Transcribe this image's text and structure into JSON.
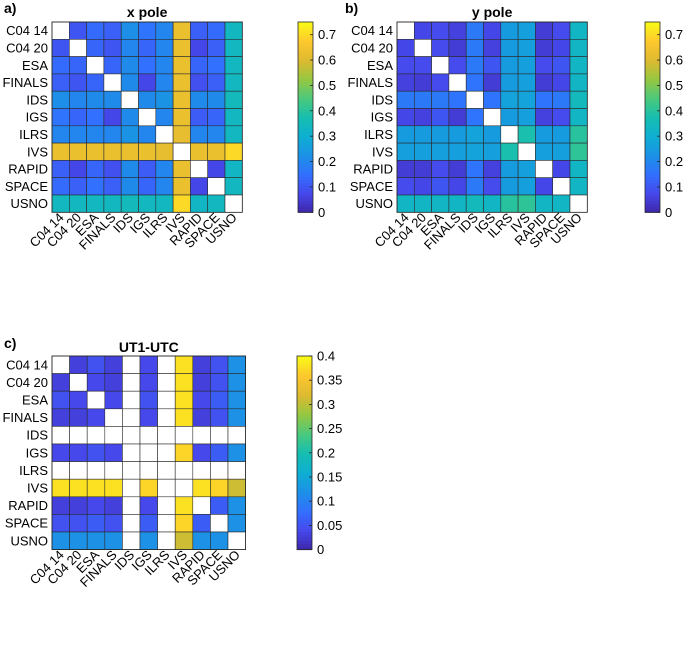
{
  "chart_data": [
    {
      "type": "heatmap",
      "panel_label": "a)",
      "title": "x pole",
      "categories": [
        "C04 14",
        "C04 20",
        "ESA",
        "FINALS",
        "IDS",
        "IGS",
        "ILRS",
        "IVS",
        "RAPID",
        "SPACE",
        "USNO"
      ],
      "colorbar": {
        "min": 0,
        "max": 0.75,
        "ticks": [
          0,
          0.1,
          0.2,
          0.3,
          0.4,
          0.5,
          0.6,
          0.7
        ]
      },
      "values": [
        [
          null,
          0.1,
          0.14,
          0.12,
          0.22,
          0.16,
          0.2,
          0.63,
          0.12,
          0.14,
          0.34
        ],
        [
          0.1,
          null,
          0.13,
          0.1,
          0.2,
          0.13,
          0.2,
          0.63,
          0.07,
          0.12,
          0.34
        ],
        [
          0.14,
          0.13,
          null,
          0.13,
          0.21,
          0.15,
          0.2,
          0.63,
          0.13,
          0.15,
          0.34
        ],
        [
          0.12,
          0.1,
          0.13,
          null,
          0.21,
          0.07,
          0.2,
          0.63,
          0.09,
          0.12,
          0.34
        ],
        [
          0.22,
          0.2,
          0.21,
          0.21,
          null,
          0.21,
          0.23,
          0.63,
          0.21,
          0.21,
          0.35
        ],
        [
          0.16,
          0.13,
          0.15,
          0.07,
          0.21,
          null,
          0.2,
          0.63,
          0.11,
          0.13,
          0.34
        ],
        [
          0.2,
          0.2,
          0.2,
          0.2,
          0.23,
          0.2,
          null,
          0.62,
          0.2,
          0.2,
          0.34
        ],
        [
          0.63,
          0.63,
          0.63,
          0.63,
          0.63,
          0.63,
          0.62,
          null,
          0.63,
          0.63,
          0.7
        ],
        [
          0.12,
          0.07,
          0.13,
          0.09,
          0.21,
          0.11,
          0.2,
          0.63,
          null,
          0.07,
          0.33
        ],
        [
          0.14,
          0.12,
          0.15,
          0.12,
          0.21,
          0.13,
          0.2,
          0.63,
          0.07,
          null,
          0.34
        ],
        [
          0.34,
          0.34,
          0.34,
          0.34,
          0.35,
          0.34,
          0.34,
          0.7,
          0.33,
          0.34,
          null
        ]
      ]
    },
    {
      "type": "heatmap",
      "panel_label": "b)",
      "title": "y pole",
      "categories": [
        "C04 14",
        "C04 20",
        "ESA",
        "FINALS",
        "IDS",
        "IGS",
        "ILRS",
        "IVS",
        "RAPID",
        "SPACE",
        "USNO"
      ],
      "colorbar": {
        "min": 0,
        "max": 0.75,
        "ticks": [
          0,
          0.1,
          0.2,
          0.3,
          0.4,
          0.5,
          0.6,
          0.7
        ]
      },
      "values": [
        [
          null,
          0.07,
          0.08,
          0.06,
          0.17,
          0.07,
          0.25,
          0.26,
          0.05,
          0.08,
          0.33
        ],
        [
          0.07,
          null,
          0.08,
          0.05,
          0.17,
          0.06,
          0.25,
          0.26,
          0.05,
          0.07,
          0.33
        ],
        [
          0.08,
          0.08,
          null,
          0.08,
          0.17,
          0.1,
          0.25,
          0.26,
          0.08,
          0.1,
          0.33
        ],
        [
          0.06,
          0.05,
          0.08,
          null,
          0.16,
          0.05,
          0.25,
          0.26,
          0.05,
          0.07,
          0.33
        ],
        [
          0.17,
          0.17,
          0.17,
          0.16,
          null,
          0.16,
          0.27,
          0.27,
          0.16,
          0.17,
          0.35
        ],
        [
          0.07,
          0.06,
          0.1,
          0.05,
          0.16,
          null,
          0.25,
          0.26,
          0.06,
          0.08,
          0.33
        ],
        [
          0.25,
          0.25,
          0.25,
          0.25,
          0.27,
          0.25,
          null,
          0.38,
          0.25,
          0.25,
          0.4
        ],
        [
          0.26,
          0.26,
          0.26,
          0.26,
          0.27,
          0.26,
          0.38,
          null,
          0.26,
          0.26,
          0.41
        ],
        [
          0.05,
          0.05,
          0.08,
          0.05,
          0.16,
          0.06,
          0.25,
          0.26,
          null,
          0.07,
          0.33
        ],
        [
          0.08,
          0.07,
          0.1,
          0.07,
          0.17,
          0.08,
          0.25,
          0.26,
          0.07,
          null,
          0.33
        ],
        [
          0.33,
          0.33,
          0.33,
          0.33,
          0.35,
          0.33,
          0.4,
          0.41,
          0.33,
          0.33,
          null
        ]
      ]
    },
    {
      "type": "heatmap",
      "panel_label": "c)",
      "title": "UT1-UTC",
      "categories": [
        "C04 14",
        "C04 20",
        "ESA",
        "FINALS",
        "IDS",
        "IGS",
        "ILRS",
        "IVS",
        "RAPID",
        "SPACE",
        "USNO"
      ],
      "colorbar": {
        "min": 0,
        "max": 0.4,
        "ticks": [
          0,
          0.05,
          0.1,
          0.15,
          0.2,
          0.25,
          0.3,
          0.35,
          0.4
        ]
      },
      "values": [
        [
          null,
          0.03,
          0.05,
          0.03,
          null,
          0.04,
          null,
          0.38,
          0.03,
          0.05,
          0.12
        ],
        [
          0.03,
          null,
          0.04,
          0.03,
          null,
          0.04,
          null,
          0.38,
          0.03,
          0.05,
          0.12
        ],
        [
          0.05,
          0.04,
          null,
          0.04,
          null,
          0.05,
          null,
          0.38,
          0.04,
          0.06,
          0.12
        ],
        [
          0.03,
          0.03,
          0.04,
          null,
          null,
          0.04,
          null,
          0.38,
          0.03,
          0.05,
          0.12
        ],
        [
          null,
          null,
          null,
          null,
          null,
          null,
          null,
          null,
          null,
          null,
          null
        ],
        [
          0.04,
          0.04,
          0.05,
          0.04,
          null,
          null,
          null,
          0.37,
          0.04,
          0.06,
          0.12
        ],
        [
          null,
          null,
          null,
          null,
          null,
          null,
          null,
          null,
          null,
          null,
          null
        ],
        [
          0.38,
          0.38,
          0.38,
          0.38,
          null,
          0.37,
          null,
          null,
          0.38,
          0.37,
          0.31
        ],
        [
          0.03,
          0.03,
          0.04,
          0.03,
          null,
          0.04,
          null,
          0.38,
          null,
          0.06,
          0.12
        ],
        [
          0.05,
          0.05,
          0.06,
          0.05,
          null,
          0.06,
          null,
          0.37,
          0.06,
          null,
          0.12
        ],
        [
          0.12,
          0.12,
          0.12,
          0.12,
          null,
          0.12,
          null,
          0.31,
          0.12,
          0.12,
          null
        ]
      ]
    }
  ]
}
